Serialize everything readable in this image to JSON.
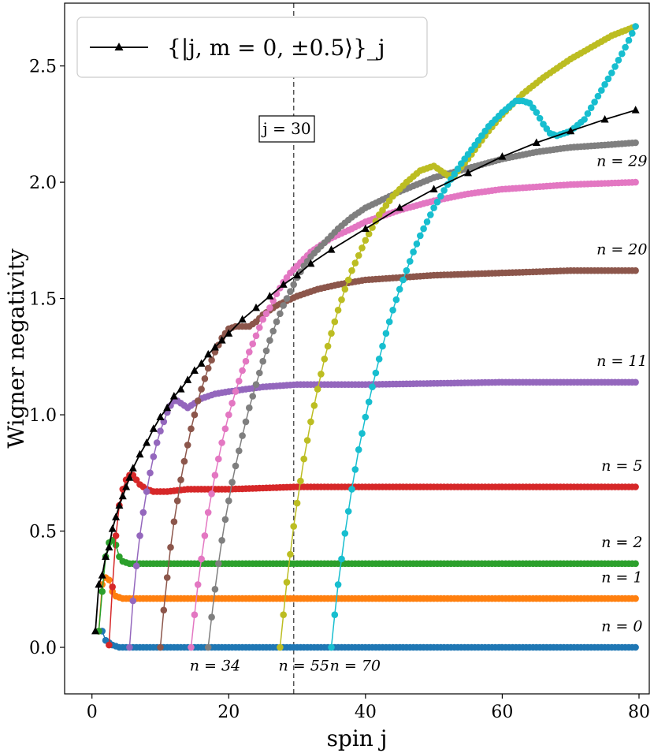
{
  "chart_data": {
    "type": "line",
    "xlabel": "spin j",
    "ylabel": "Wigner negativity",
    "xlim": [
      -4,
      81.5
    ],
    "ylim": [
      -0.2,
      2.77
    ],
    "xticks": [
      0,
      20,
      40,
      60,
      80
    ],
    "yticks": [
      0.0,
      0.5,
      1.0,
      1.5,
      2.0,
      2.5
    ],
    "xtick_labels": [
      "0",
      "20",
      "40",
      "60",
      "80"
    ],
    "ytick_labels": [
      "0.0",
      "0.5",
      "1.0",
      "1.5",
      "2.0",
      "2.5"
    ],
    "legend": {
      "label": "{|j, m = 0, ±0.5⟩}_j",
      "placement": "top-left"
    },
    "vline": {
      "x": 29.5,
      "label": "j = 30"
    },
    "envelope": {
      "name": "{|j, m=0, ±0.5⟩}_j",
      "color": "#000000",
      "marker": "triangle",
      "points": [
        [
          0.5,
          0.07
        ],
        [
          1,
          0.27
        ],
        [
          1.5,
          0.31
        ],
        [
          2,
          0.39
        ],
        [
          2.5,
          0.43
        ],
        [
          3,
          0.51
        ],
        [
          3.5,
          0.56
        ],
        [
          4,
          0.61
        ],
        [
          4.5,
          0.65
        ],
        [
          5,
          0.69
        ],
        [
          5.5,
          0.73
        ],
        [
          6,
          0.77
        ],
        [
          7,
          0.83
        ],
        [
          8,
          0.88
        ],
        [
          9,
          0.94
        ],
        [
          10,
          0.99
        ],
        [
          11,
          1.03
        ],
        [
          12,
          1.08
        ],
        [
          13,
          1.11
        ],
        [
          14,
          1.15
        ],
        [
          15,
          1.19
        ],
        [
          16,
          1.22
        ],
        [
          17,
          1.26
        ],
        [
          18,
          1.29
        ],
        [
          19,
          1.32
        ],
        [
          20,
          1.35
        ],
        [
          22,
          1.41
        ],
        [
          24,
          1.46
        ],
        [
          26,
          1.51
        ],
        [
          28,
          1.56
        ],
        [
          30,
          1.6
        ],
        [
          32,
          1.65
        ],
        [
          35,
          1.71
        ],
        [
          40,
          1.8
        ],
        [
          45,
          1.89
        ],
        [
          50,
          1.97
        ],
        [
          55,
          2.04
        ],
        [
          60,
          2.11
        ],
        [
          65,
          2.17
        ],
        [
          70,
          2.22
        ],
        [
          75,
          2.27
        ],
        [
          79.5,
          2.31
        ]
      ]
    },
    "series": [
      {
        "name": "n = 0",
        "color": "#1f77b4",
        "points": [
          [
            1.5,
            0.07
          ],
          [
            2,
            0.03
          ],
          [
            3,
            0.01
          ],
          [
            4,
            0.0
          ],
          [
            10,
            0.0
          ],
          [
            20,
            0.0
          ],
          [
            40,
            0.0
          ],
          [
            60,
            0.0
          ],
          [
            79.5,
            0.0
          ]
        ]
      },
      {
        "name": "n = 1",
        "color": "#ff7f0e",
        "points": [
          [
            1,
            0.07
          ],
          [
            1.5,
            0.27
          ],
          [
            2,
            0.3
          ],
          [
            2.5,
            0.29
          ],
          [
            3,
            0.24
          ],
          [
            3.5,
            0.22
          ],
          [
            4.5,
            0.21
          ],
          [
            10,
            0.21
          ],
          [
            30,
            0.21
          ],
          [
            60,
            0.21
          ],
          [
            79.5,
            0.21
          ]
        ]
      },
      {
        "name": "n = 2",
        "color": "#2ca02c",
        "points": [
          [
            1,
            0.07
          ],
          [
            1.5,
            0.24
          ],
          [
            2,
            0.39
          ],
          [
            2.5,
            0.45
          ],
          [
            3,
            0.46
          ],
          [
            3.5,
            0.44
          ],
          [
            4,
            0.39
          ],
          [
            4.5,
            0.37
          ],
          [
            5.5,
            0.36
          ],
          [
            10,
            0.36
          ],
          [
            30,
            0.36
          ],
          [
            60,
            0.36
          ],
          [
            79.5,
            0.36
          ]
        ]
      },
      {
        "name": "n = 5",
        "color": "#d62728",
        "points": [
          [
            2.5,
            0.01
          ],
          [
            3,
            0.26
          ],
          [
            3.5,
            0.48
          ],
          [
            4,
            0.61
          ],
          [
            4.5,
            0.68
          ],
          [
            5,
            0.72
          ],
          [
            5.5,
            0.74
          ],
          [
            6,
            0.74
          ],
          [
            6.5,
            0.72
          ],
          [
            7,
            0.7
          ],
          [
            8,
            0.68
          ],
          [
            9,
            0.67
          ],
          [
            11,
            0.67
          ],
          [
            14,
            0.68
          ],
          [
            20,
            0.68
          ],
          [
            30,
            0.69
          ],
          [
            50,
            0.69
          ],
          [
            79.5,
            0.69
          ]
        ]
      },
      {
        "name": "n = 11",
        "color": "#9467bd",
        "points": [
          [
            5.5,
            0.0
          ],
          [
            6,
            0.2
          ],
          [
            6.5,
            0.35
          ],
          [
            7,
            0.48
          ],
          [
            7.5,
            0.58
          ],
          [
            8,
            0.67
          ],
          [
            8.5,
            0.75
          ],
          [
            9,
            0.82
          ],
          [
            9.5,
            0.88
          ],
          [
            10,
            0.93
          ],
          [
            10.5,
            0.97
          ],
          [
            11,
            1.01
          ],
          [
            11.5,
            1.04
          ],
          [
            12,
            1.06
          ],
          [
            12.5,
            1.06
          ],
          [
            13,
            1.05
          ],
          [
            13.5,
            1.04
          ],
          [
            14,
            1.03
          ],
          [
            15,
            1.05
          ],
          [
            16,
            1.07
          ],
          [
            18,
            1.09
          ],
          [
            20,
            1.1
          ],
          [
            25,
            1.12
          ],
          [
            30,
            1.13
          ],
          [
            40,
            1.13
          ],
          [
            60,
            1.14
          ],
          [
            79.5,
            1.14
          ]
        ]
      },
      {
        "name": "n = 20",
        "color": "#8c564b",
        "points": [
          [
            10,
            0.0
          ],
          [
            10.5,
            0.16
          ],
          [
            11,
            0.3
          ],
          [
            11.5,
            0.43
          ],
          [
            12,
            0.54
          ],
          [
            12.5,
            0.63
          ],
          [
            13,
            0.72
          ],
          [
            13.5,
            0.8
          ],
          [
            14,
            0.87
          ],
          [
            14.5,
            0.94
          ],
          [
            15,
            1.0
          ],
          [
            15.5,
            1.06
          ],
          [
            16,
            1.11
          ],
          [
            17,
            1.2
          ],
          [
            18,
            1.27
          ],
          [
            19,
            1.33
          ],
          [
            20,
            1.37
          ],
          [
            21,
            1.38
          ],
          [
            22,
            1.38
          ],
          [
            23,
            1.38
          ],
          [
            24,
            1.4
          ],
          [
            25,
            1.43
          ],
          [
            27,
            1.47
          ],
          [
            30,
            1.51
          ],
          [
            33,
            1.54
          ],
          [
            36,
            1.56
          ],
          [
            40,
            1.58
          ],
          [
            50,
            1.6
          ],
          [
            60,
            1.61
          ],
          [
            70,
            1.62
          ],
          [
            79.5,
            1.62
          ]
        ]
      },
      {
        "name": "n = 34",
        "color": "#e377c2",
        "points": [
          [
            14.5,
            0.0
          ],
          [
            15,
            0.14
          ],
          [
            15.5,
            0.27
          ],
          [
            16,
            0.38
          ],
          [
            16.5,
            0.48
          ],
          [
            17,
            0.58
          ],
          [
            17.5,
            0.66
          ],
          [
            18,
            0.74
          ],
          [
            18.5,
            0.81
          ],
          [
            19,
            0.88
          ],
          [
            19.5,
            0.94
          ],
          [
            20,
            1.0
          ],
          [
            21,
            1.1
          ],
          [
            22,
            1.19
          ],
          [
            23,
            1.27
          ],
          [
            24,
            1.34
          ],
          [
            25,
            1.41
          ],
          [
            26,
            1.46
          ],
          [
            27,
            1.52
          ],
          [
            28,
            1.57
          ],
          [
            29,
            1.61
          ],
          [
            30,
            1.64
          ],
          [
            32,
            1.7
          ],
          [
            35,
            1.76
          ],
          [
            38,
            1.8
          ],
          [
            40,
            1.83
          ],
          [
            45,
            1.88
          ],
          [
            50,
            1.92
          ],
          [
            55,
            1.95
          ],
          [
            60,
            1.97
          ],
          [
            70,
            1.99
          ],
          [
            79.5,
            2.0
          ]
        ]
      },
      {
        "name": "n = 29",
        "color": "#7f7f7f",
        "points": [
          [
            17,
            0.0
          ],
          [
            17.5,
            0.13
          ],
          [
            18,
            0.25
          ],
          [
            18.5,
            0.36
          ],
          [
            19,
            0.46
          ],
          [
            19.5,
            0.55
          ],
          [
            20,
            0.63
          ],
          [
            20.5,
            0.71
          ],
          [
            21,
            0.78
          ],
          [
            22,
            0.91
          ],
          [
            23,
            1.03
          ],
          [
            24,
            1.13
          ],
          [
            25,
            1.23
          ],
          [
            26,
            1.32
          ],
          [
            27,
            1.4
          ],
          [
            28,
            1.47
          ],
          [
            29,
            1.53
          ],
          [
            30,
            1.59
          ],
          [
            31,
            1.64
          ],
          [
            32,
            1.68
          ],
          [
            34,
            1.74
          ],
          [
            36,
            1.8
          ],
          [
            38,
            1.85
          ],
          [
            40,
            1.89
          ],
          [
            45,
            1.96
          ],
          [
            50,
            2.02
          ],
          [
            55,
            2.06
          ],
          [
            60,
            2.1
          ],
          [
            65,
            2.13
          ],
          [
            70,
            2.15
          ],
          [
            75,
            2.16
          ],
          [
            79.5,
            2.17
          ]
        ]
      },
      {
        "name": "n = 55",
        "color": "#bcbd22",
        "points": [
          [
            27.5,
            0.0
          ],
          [
            28,
            0.14
          ],
          [
            28.5,
            0.28
          ],
          [
            29,
            0.4
          ],
          [
            29.5,
            0.52
          ],
          [
            30,
            0.62
          ],
          [
            31,
            0.81
          ],
          [
            32,
            0.97
          ],
          [
            33,
            1.11
          ],
          [
            34,
            1.24
          ],
          [
            35,
            1.35
          ],
          [
            36,
            1.45
          ],
          [
            37,
            1.54
          ],
          [
            38,
            1.62
          ],
          [
            40,
            1.75
          ],
          [
            42,
            1.86
          ],
          [
            44,
            1.94
          ],
          [
            46,
            2.0
          ],
          [
            48,
            2.05
          ],
          [
            50,
            2.07
          ],
          [
            51,
            2.05
          ],
          [
            52,
            2.03
          ],
          [
            53,
            2.03
          ],
          [
            55,
            2.1
          ],
          [
            58,
            2.22
          ],
          [
            60,
            2.29
          ],
          [
            63,
            2.38
          ],
          [
            66,
            2.45
          ],
          [
            70,
            2.53
          ],
          [
            73,
            2.58
          ],
          [
            76,
            2.63
          ],
          [
            79.5,
            2.67
          ]
        ]
      },
      {
        "name": "n = 70",
        "color": "#17becf",
        "points": [
          [
            35,
            0.0
          ],
          [
            35.5,
            0.14
          ],
          [
            36,
            0.27
          ],
          [
            36.5,
            0.38
          ],
          [
            37,
            0.49
          ],
          [
            38,
            0.68
          ],
          [
            39,
            0.85
          ],
          [
            40,
            0.99
          ],
          [
            41,
            1.12
          ],
          [
            42,
            1.24
          ],
          [
            43,
            1.35
          ],
          [
            44,
            1.45
          ],
          [
            45,
            1.54
          ],
          [
            46,
            1.62
          ],
          [
            47,
            1.7
          ],
          [
            48,
            1.77
          ],
          [
            50,
            1.89
          ],
          [
            52,
            1.99
          ],
          [
            54,
            2.08
          ],
          [
            56,
            2.16
          ],
          [
            58,
            2.24
          ],
          [
            60,
            2.3
          ],
          [
            62,
            2.35
          ],
          [
            63,
            2.35
          ],
          [
            64,
            2.34
          ],
          [
            65,
            2.3
          ],
          [
            66,
            2.25
          ],
          [
            67,
            2.21
          ],
          [
            68,
            2.2
          ],
          [
            70,
            2.22
          ],
          [
            72,
            2.27
          ],
          [
            74,
            2.37
          ],
          [
            76,
            2.47
          ],
          [
            78,
            2.58
          ],
          [
            79.5,
            2.67
          ]
        ]
      }
    ],
    "curve_labels": [
      {
        "text": "n = 29",
        "x": 77.5,
        "y": 2.07
      },
      {
        "text": "n = 20",
        "x": 77.5,
        "y": 1.69
      },
      {
        "text": "n = 11",
        "x": 77.5,
        "y": 1.21
      },
      {
        "text": "n = 5",
        "x": 77.5,
        "y": 0.76
      },
      {
        "text": "n = 2",
        "x": 77.5,
        "y": 0.43
      },
      {
        "text": "n = 1",
        "x": 77.5,
        "y": 0.28
      },
      {
        "text": "n = 0",
        "x": 77.5,
        "y": 0.07
      },
      {
        "text": "n = 34",
        "x": 18,
        "y": -0.1
      },
      {
        "text": "n = 55",
        "x": 31,
        "y": -0.1
      },
      {
        "text": "n = 70",
        "x": 38.5,
        "y": -0.1
      }
    ]
  }
}
